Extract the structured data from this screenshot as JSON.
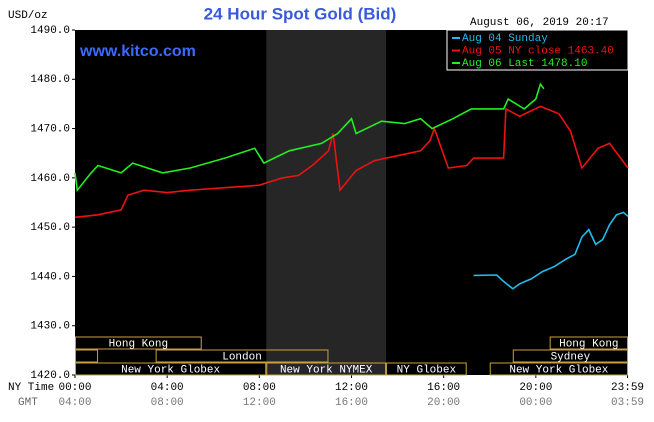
{
  "chart_data": {
    "type": "line",
    "title": "24 Hour Spot Gold (Bid)",
    "timestamp": "August 06, 2019 20:17",
    "y_label": "USD/oz",
    "watermark": "www.kitco.com",
    "x_row_labels": [
      "NY Time",
      "GMT"
    ],
    "xlim": [
      0,
      24
    ],
    "ylim": [
      1420,
      1490
    ],
    "yticks": [
      {
        "value": 1420,
        "label": "1420.0"
      },
      {
        "value": 1430,
        "label": "1430.0"
      },
      {
        "value": 1440,
        "label": "1440.0"
      },
      {
        "value": 1450,
        "label": "1450.0"
      },
      {
        "value": 1460,
        "label": "1460.0"
      },
      {
        "value": 1470,
        "label": "1470.0"
      },
      {
        "value": 1480,
        "label": "1480.0"
      },
      {
        "value": 1490,
        "label": "1490.0"
      }
    ],
    "xticks": [
      {
        "value": 0,
        "label": "00:00"
      },
      {
        "value": 4,
        "label": "04:00"
      },
      {
        "value": 8,
        "label": "08:00"
      },
      {
        "value": 12,
        "label": "12:00"
      },
      {
        "value": 16,
        "label": "16:00"
      },
      {
        "value": 20,
        "label": "20:00"
      },
      {
        "value": 23.98,
        "label": "23:59"
      }
    ],
    "x2ticks": [
      {
        "value": 0,
        "label": "04:00"
      },
      {
        "value": 4,
        "label": "08:00"
      },
      {
        "value": 8,
        "label": "12:00"
      },
      {
        "value": 12,
        "label": "16:00"
      },
      {
        "value": 16,
        "label": "20:00"
      },
      {
        "value": 20,
        "label": "00:00"
      },
      {
        "value": 23.98,
        "label": "03:59"
      }
    ],
    "xspan": [
      8.3,
      13.5
    ],
    "sessions": [
      [
        {
          "name": "Hong Kong",
          "start": 0,
          "end": 5.5
        },
        {
          "name": "Hong Kong",
          "start": 20.6,
          "end": 24
        }
      ],
      [
        {
          "name": null,
          "start": 0,
          "end": 1
        },
        {
          "name": "London",
          "start": 3.5,
          "end": 11
        },
        {
          "name": "Sydney",
          "start": 19,
          "end": 24
        }
      ],
      [
        {
          "name": "New York Globex",
          "start": 0,
          "end": 8.3
        },
        {
          "name": "New York NYMEX",
          "start": 8.3,
          "end": 13.5
        },
        {
          "name": "NY Globex",
          "start": 13.5,
          "end": 17
        },
        {
          "name": "New York Globex",
          "start": 18,
          "end": 24
        }
      ]
    ],
    "series": [
      {
        "name": "Aug 04 Sunday",
        "color": "#22bbee",
        "x": [
          17.3,
          18.3,
          18.6,
          19.0,
          19.3,
          19.8,
          20.3,
          20.8,
          21.3,
          21.7,
          22.0,
          22.3,
          22.6,
          22.9,
          23.2,
          23.5,
          23.8,
          24.0
        ],
        "values": [
          1440.2,
          1440.3,
          1439.0,
          1437.5,
          1438.5,
          1439.5,
          1441.0,
          1442.0,
          1443.5,
          1444.5,
          1448.0,
          1449.5,
          1446.5,
          1447.5,
          1450.5,
          1452.5,
          1453.0,
          1452.2
        ]
      },
      {
        "name": "Aug 05 NY close 1463.40",
        "color": "#ee1111",
        "x": [
          0,
          1.0,
          2.0,
          2.3,
          3.0,
          4.0,
          5.0,
          6.5,
          8.0,
          9.0,
          9.7,
          10.3,
          11.0,
          11.2,
          11.5,
          12.2,
          13.0,
          14.0,
          15.0,
          15.4,
          15.6,
          16.2,
          17.0,
          17.3,
          18.6,
          18.7,
          19.3,
          20.2,
          21.0,
          21.5,
          22.0,
          22.7,
          23.2,
          24.0
        ],
        "values": [
          1452.0,
          1452.5,
          1453.5,
          1456.5,
          1457.5,
          1457.0,
          1457.5,
          1458.0,
          1458.5,
          1460.0,
          1460.5,
          1462.5,
          1465.5,
          1469.0,
          1457.5,
          1461.5,
          1463.5,
          1464.5,
          1465.5,
          1467.5,
          1470.0,
          1462.0,
          1462.5,
          1464.0,
          1464.0,
          1474.0,
          1472.5,
          1474.5,
          1473.0,
          1469.5,
          1462.0,
          1466.0,
          1467.0,
          1462.0
        ]
      },
      {
        "name": "Aug 06 Last 1478.10",
        "color": "#22ee22",
        "x": [
          0,
          0.1,
          0.7,
          1.0,
          2.0,
          2.5,
          3.8,
          5.0,
          6.5,
          7.8,
          8.2,
          9.3,
          10.7,
          11.4,
          12.0,
          12.2,
          13.3,
          14.3,
          15.0,
          15.5,
          16.4,
          17.2,
          18.6,
          18.8,
          19.5,
          20.0,
          20.2,
          20.35
        ],
        "values": [
          1461.0,
          1457.5,
          1461.0,
          1462.5,
          1461.0,
          1463.0,
          1461.0,
          1462.0,
          1464.0,
          1466.0,
          1463.0,
          1465.5,
          1467.0,
          1469.0,
          1472.0,
          1469.0,
          1471.5,
          1471.0,
          1472.0,
          1470.0,
          1472.0,
          1474.0,
          1474.0,
          1476.0,
          1474.0,
          1476.0,
          1479.0,
          1478.1
        ]
      }
    ]
  }
}
